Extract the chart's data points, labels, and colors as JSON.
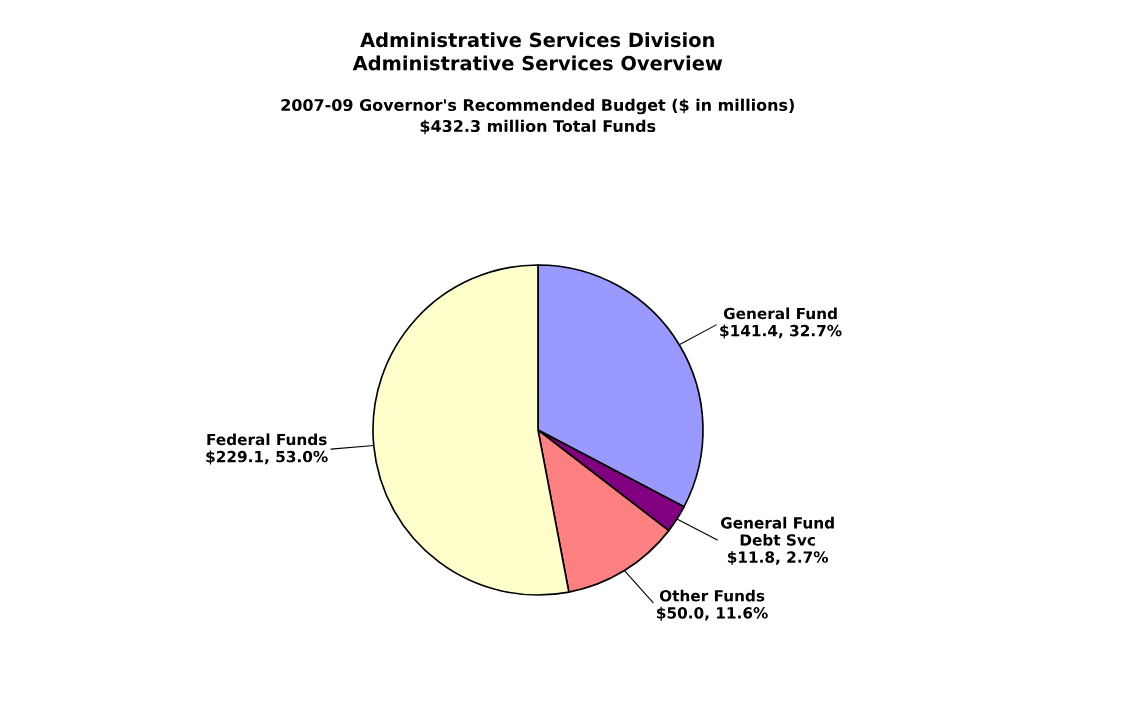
{
  "chart_data": {
    "type": "pie",
    "title": "Administrative Services Division\nAdministrative Services Overview",
    "subtitle": "2007-09 Governor's Recommended Budget ($ in millions)\n$432.3 million Total Funds",
    "categories": [
      "General Fund",
      "General Fund\nDebt Svc",
      "Other Funds",
      "Federal Funds"
    ],
    "values": [
      141.4,
      11.8,
      50.0,
      229.1
    ],
    "colors": [
      "#9999ff",
      "#800080",
      "#ff8080",
      "#ffffcc"
    ],
    "value_labels": [
      "$141.4, 32.7%",
      "$11.8, 2.7%",
      "$50.0, 11.6%",
      "$229.1, 53.0%"
    ],
    "legend": false
  }
}
